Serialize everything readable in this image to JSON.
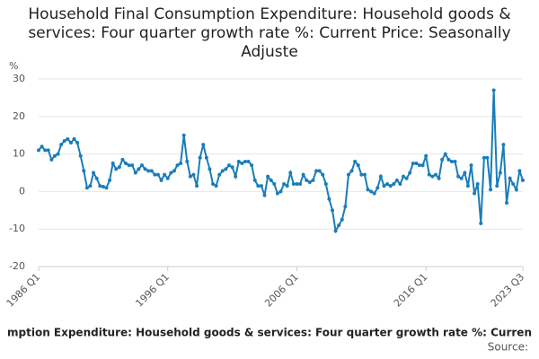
{
  "chart_data": {
    "type": "line",
    "title": "Household Final Consumption Expenditure: Household goods & services: Four quarter growth rate %: Current Price: Seasonally Adjuste",
    "y_label": "%",
    "caption": "mption Expenditure: Household goods & services: Four quarter growth rate %: Curren",
    "source": "Source:",
    "categories": [
      "1986 Q1",
      null,
      null,
      null,
      null,
      null,
      null,
      null,
      null,
      null,
      null,
      null,
      null,
      null,
      null,
      null,
      null,
      null,
      null,
      null,
      null,
      null,
      null,
      null,
      null,
      null,
      null,
      null,
      null,
      null,
      null,
      null,
      null,
      null,
      null,
      null,
      null,
      null,
      null,
      null,
      "1996 Q1",
      null,
      null,
      null,
      null,
      null,
      null,
      null,
      null,
      null,
      null,
      null,
      null,
      null,
      null,
      null,
      null,
      null,
      null,
      null,
      null,
      null,
      null,
      null,
      null,
      null,
      null,
      null,
      null,
      null,
      null,
      null,
      null,
      null,
      null,
      null,
      null,
      null,
      null,
      null,
      "2006 Q1",
      null,
      null,
      null,
      null,
      null,
      null,
      null,
      null,
      null,
      null,
      null,
      null,
      null,
      null,
      null,
      null,
      null,
      null,
      null,
      null,
      null,
      null,
      null,
      null,
      null,
      null,
      null,
      null,
      null,
      null,
      null,
      null,
      null,
      null,
      null,
      null,
      null,
      null,
      null,
      "2016 Q1",
      null,
      null,
      null,
      null,
      null,
      null,
      null,
      null,
      null,
      null,
      null,
      null,
      null,
      null,
      null,
      null,
      null,
      null,
      null,
      null,
      null,
      null,
      null,
      null,
      null,
      null,
      null,
      null,
      null,
      "2023 Q3"
    ],
    "series": [
      {
        "name": "Four quarter growth rate",
        "color": "#1a7db8",
        "values": [
          11,
          12,
          11,
          11,
          8.5,
          9.5,
          10,
          12.5,
          13.5,
          14,
          13,
          14,
          13,
          9.5,
          5.5,
          1,
          1.5,
          5,
          3.5,
          1.5,
          1.3,
          1,
          3,
          7.5,
          6,
          6.5,
          8.5,
          7.5,
          7,
          7,
          5,
          6,
          7,
          6,
          5.5,
          5.5,
          4.5,
          4.5,
          3,
          4.5,
          3.5,
          5,
          5.5,
          7,
          7.5,
          15,
          8,
          4,
          4.5,
          1.5,
          9,
          12.5,
          9,
          6,
          2,
          1.5,
          4.5,
          5.5,
          6,
          7,
          6.5,
          4,
          8,
          7.5,
          8,
          8,
          7,
          3,
          1.5,
          1.5,
          -1,
          4,
          3,
          2,
          -0.5,
          0,
          2,
          1.5,
          5,
          2,
          2,
          2,
          4.5,
          3,
          2.5,
          3,
          5.5,
          5.5,
          4.5,
          2,
          -2,
          -5,
          -10.5,
          -9,
          -7.5,
          -4,
          4.5,
          5.5,
          8,
          7,
          4.5,
          4.5,
          0.5,
          0,
          -0.5,
          1,
          4,
          1.5,
          2,
          1.5,
          2,
          3,
          2,
          4,
          3.5,
          5,
          7.5,
          7.5,
          7,
          7,
          9.5,
          4.5,
          4,
          4.5,
          3.5,
          8.5,
          10,
          8.5,
          8,
          8,
          4,
          3.5,
          5,
          1.5,
          7,
          -0.5,
          2,
          -8.5,
          9,
          9,
          0.5,
          27,
          1.5,
          5,
          12.5,
          -3,
          3.5,
          2,
          0.5,
          5.5,
          3
        ]
      }
    ],
    "ylim": [
      -20,
      30
    ],
    "yticks": [
      -20,
      -10,
      0,
      10,
      20,
      30
    ],
    "grid": true
  }
}
